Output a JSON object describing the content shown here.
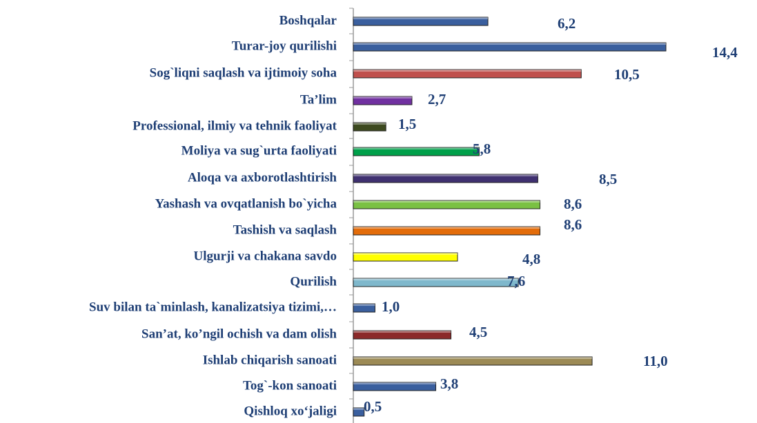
{
  "chart_data": {
    "type": "bar",
    "orientation": "horizontal",
    "categories": [
      "Boshqalar",
      "Turar-joy qurilishi",
      "Sog`liqni saqlash va ijtimoiy soha",
      "Ta’lim",
      "Professional, ilmiy va tehnik faoliyat",
      "Moliya va sug`urta faoliyati",
      "Aloqa va axborotlashtirish",
      "Yashash va ovqatlanish bo`yicha",
      "Tashish va saqlash",
      "Ulgurji va chakana savdo",
      "Qurilish",
      "Suv bilan ta`minlash, kanalizatsiya tizimi,…",
      "San’at, ko’ngil ochish va dam olish",
      "Ishlab chiqarish sanoati",
      "Tog`-kon sanoati",
      "Qishloq xo‘jaligi"
    ],
    "values": [
      6.2,
      14.4,
      10.5,
      2.7,
      1.5,
      5.8,
      8.5,
      8.6,
      8.6,
      4.8,
      7.6,
      1.0,
      4.5,
      11.0,
      3.8,
      0.5
    ],
    "value_labels": [
      "6,2",
      "14,4",
      "10,5",
      "2,7",
      "1,5",
      "5,8",
      "8,5",
      "8,6",
      "8,6",
      "4,8",
      "7,6",
      "1,0",
      "4,5",
      "11,0",
      "3,8",
      "0,5"
    ],
    "colors": [
      "#3a5f9e",
      "#3a5f9e",
      "#c0504d",
      "#7030a0",
      "#3d4a1f",
      "#00a04a",
      "#3f3070",
      "#7ac143",
      "#e36c0a",
      "#ffff00",
      "#7fb8cc",
      "#3a5f9e",
      "#8b2a2a",
      "#9c8a55",
      "#3a5f9e",
      "#3a5f9e"
    ]
  }
}
